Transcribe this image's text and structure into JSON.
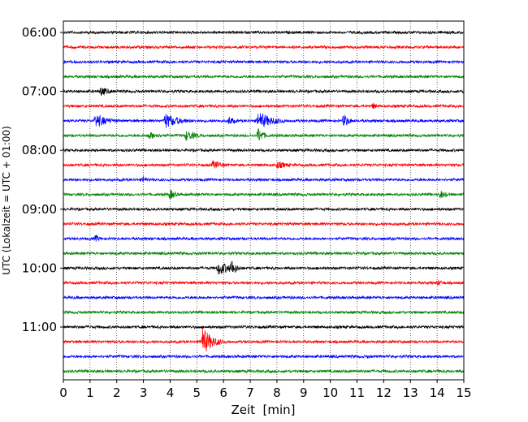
{
  "chart_data": {
    "type": "line",
    "subtype": "helicorder",
    "xlabel": "Zeit  [min]",
    "ylabel": "UTC (Lokalzeit = UTC + 01:00)",
    "xlim": [
      0,
      15
    ],
    "x_ticks": [
      "0",
      "1",
      "2",
      "3",
      "4",
      "5",
      "6",
      "7",
      "8",
      "9",
      "10",
      "11",
      "12",
      "13",
      "14",
      "15"
    ],
    "x_grid": "dotted",
    "y_tick_labels": [
      "06:00",
      "07:00",
      "08:00",
      "09:00",
      "10:00",
      "11:00"
    ],
    "line_start_times": [
      "06:00",
      "06:15",
      "06:30",
      "06:45",
      "07:00",
      "07:15",
      "07:30",
      "07:45",
      "08:00",
      "08:15",
      "08:30",
      "08:45",
      "09:00",
      "09:15",
      "09:30",
      "09:45",
      "10:00",
      "10:15",
      "10:30",
      "10:45",
      "11:00",
      "11:15",
      "11:30",
      "11:45"
    ],
    "trace_colors": [
      "#000000",
      "#ff0000",
      "#0000ff",
      "#008000"
    ],
    "events": [
      {
        "line": 4,
        "minute": 1.4,
        "amplitude": 6,
        "duration": 0.9
      },
      {
        "line": 5,
        "minute": 11.6,
        "amplitude": 5,
        "duration": 0.3
      },
      {
        "line": 6,
        "minute": 1.2,
        "amplitude": 9,
        "duration": 1.2
      },
      {
        "line": 6,
        "minute": 3.8,
        "amplitude": 10,
        "duration": 1.3
      },
      {
        "line": 6,
        "minute": 6.2,
        "amplitude": 6,
        "duration": 0.6
      },
      {
        "line": 6,
        "minute": 7.3,
        "amplitude": 11,
        "duration": 1.4
      },
      {
        "line": 6,
        "minute": 10.5,
        "amplitude": 9,
        "duration": 0.5
      },
      {
        "line": 7,
        "minute": 3.2,
        "amplitude": 5,
        "duration": 1.2
      },
      {
        "line": 7,
        "minute": 4.6,
        "amplitude": 7,
        "duration": 1.0
      },
      {
        "line": 7,
        "minute": 7.3,
        "amplitude": 10,
        "duration": 0.5
      },
      {
        "line": 9,
        "minute": 5.6,
        "amplitude": 6,
        "duration": 1.0
      },
      {
        "line": 9,
        "minute": 8.0,
        "amplitude": 5,
        "duration": 1.2
      },
      {
        "line": 10,
        "minute": 3.0,
        "amplitude": 6,
        "duration": 0.3
      },
      {
        "line": 11,
        "minute": 4.0,
        "amplitude": 7,
        "duration": 0.5
      },
      {
        "line": 11,
        "minute": 14.1,
        "amplitude": 6,
        "duration": 0.7
      },
      {
        "line": 14,
        "minute": 1.2,
        "amplitude": 5,
        "duration": 0.5
      },
      {
        "line": 16,
        "minute": 5.8,
        "amplitude": 9,
        "duration": 1.3
      },
      {
        "line": 16,
        "minute": 6.3,
        "amplitude": 12,
        "duration": 0.4
      },
      {
        "line": 17,
        "minute": 14.0,
        "amplitude": 4,
        "duration": 0.8
      },
      {
        "line": 21,
        "minute": 5.2,
        "amplitude": 18,
        "duration": 0.9
      },
      {
        "line": 22,
        "minute": 11.4,
        "amplitude": 3,
        "duration": 0.5
      }
    ]
  }
}
